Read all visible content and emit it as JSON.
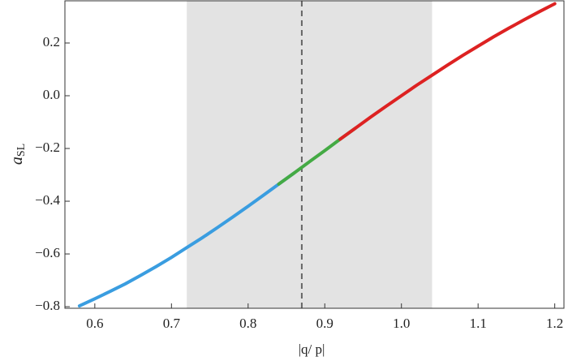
{
  "chart_data": {
    "type": "line",
    "x_label": "|q/ p|",
    "y_label": {
      "main": "a",
      "sub": "SL"
    },
    "xlim": [
      0.561,
      1.212
    ],
    "ylim": [
      -0.806,
      0.36
    ],
    "xticks": [
      0.6,
      0.7,
      0.8,
      0.9,
      {
        "value": 1.0,
        "label": "1.0"
      },
      1.1,
      1.2
    ],
    "yticks": [
      {
        "value": -0.8,
        "label": "−0.8"
      },
      {
        "value": -0.6,
        "label": "−0.6"
      },
      {
        "value": -0.4,
        "label": "−0.4"
      },
      {
        "value": -0.2,
        "label": "−0.2"
      },
      {
        "value": 0.0,
        "label": "0.0"
      },
      0.2
    ],
    "shaded_xrange": [
      0.72,
      1.04
    ],
    "shade_color": "#e3e3e3",
    "vline": 0.87,
    "vline_color": "#666666",
    "series": [
      {
        "color": "#3a9de0",
        "x": [
          0.58,
          0.6,
          0.62,
          0.64,
          0.66,
          0.68,
          0.7,
          0.72,
          0.74,
          0.76,
          0.78,
          0.8,
          0.82,
          0.84,
          0.86
        ],
        "values": [
          -0.797,
          -0.77,
          -0.742,
          -0.713,
          -0.681,
          -0.648,
          -0.613,
          -0.576,
          -0.539,
          -0.5,
          -0.46,
          -0.419,
          -0.377,
          -0.335,
          -0.293
        ]
      },
      {
        "color": "#44aa44",
        "x": [
          0.84,
          0.86,
          0.88,
          0.9,
          0.92,
          0.94
        ],
        "values": [
          -0.335,
          -0.293,
          -0.25,
          -0.208,
          -0.165,
          -0.123
        ]
      },
      {
        "color": "#dd2222",
        "x": [
          0.92,
          0.94,
          0.96,
          0.98,
          1.0,
          1.02,
          1.04,
          1.06,
          1.08,
          1.1,
          1.12,
          1.14,
          1.16,
          1.18,
          1.2
        ],
        "values": [
          -0.165,
          -0.123,
          -0.081,
          -0.04,
          0,
          0.04,
          0.078,
          0.116,
          0.153,
          0.188,
          0.223,
          0.256,
          0.288,
          0.319,
          0.349
        ]
      }
    ]
  }
}
